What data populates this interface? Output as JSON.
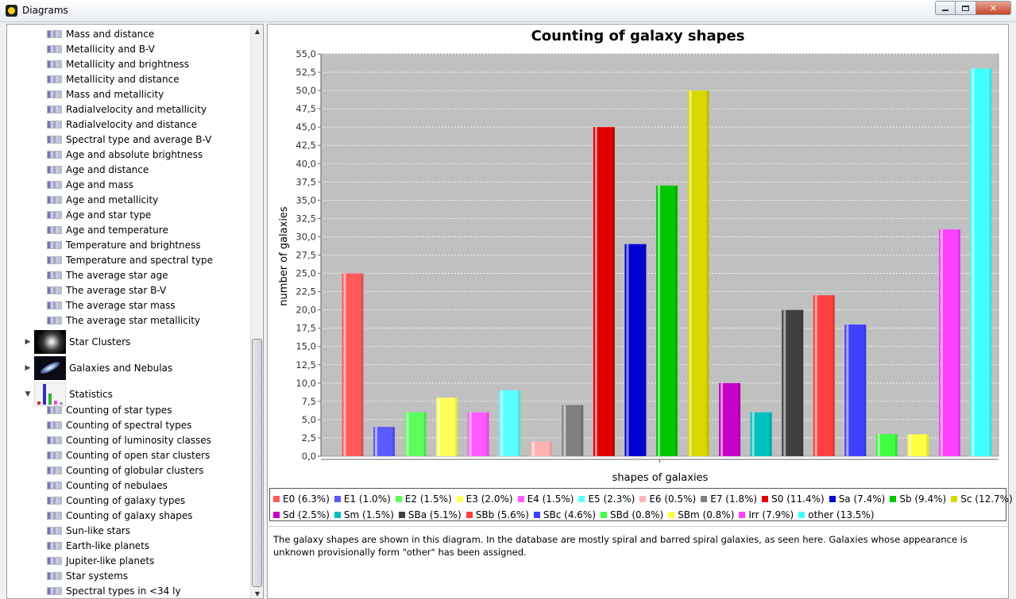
{
  "window": {
    "title": "Diagrams"
  },
  "tree": {
    "leaves_top": [
      "Mass and distance",
      "Metallicity and B-V",
      "Metallicity and brightness",
      "Metallicity and distance",
      "Mass and metallicity",
      "Radialvelocity and metallicity",
      "Radialvelocity and distance",
      "Spectral type and average B-V",
      "Age and absolute brightness",
      "Age and distance",
      "Age and mass",
      "Age and metallicity",
      "Age and star type",
      "Age and temperature",
      "Temperature and brightness",
      "Temperature and spectral type",
      "The average star age",
      "The average star B-V",
      "The average star mass",
      "The average star metallicity"
    ],
    "groups": [
      {
        "label": "Star Clusters",
        "expanded": false,
        "thumb": "star-cluster"
      },
      {
        "label": "Galaxies and Nebulas",
        "expanded": false,
        "thumb": "galaxy"
      },
      {
        "label": "Statistics",
        "expanded": true,
        "thumb": "statistics"
      }
    ],
    "leaves_statistics": [
      "Counting of star types",
      "Counting of spectral types",
      "Counting of luminosity classes",
      "Counting of open star clusters",
      "Counting of globular clusters",
      "Counting of nebulaes",
      "Counting of galaxy types",
      "Counting of galaxy shapes",
      "Sun-like stars",
      "Earth-like planets",
      "Jupiter-like planets",
      "Star systems",
      "Spectral types in <34 ly"
    ]
  },
  "chart_data": {
    "type": "bar",
    "title": "Counting of galaxy shapes",
    "xlabel": "shapes of galaxies",
    "ylabel": "number of galaxies",
    "ylim": [
      0,
      55
    ],
    "ytick_step": 2.5,
    "grid": true,
    "legend": "bottom",
    "series": [
      {
        "name": "E0 (6.3%)",
        "value": 25,
        "color": "#ff5a5a"
      },
      {
        "name": "E1 (1.0%)",
        "value": 4,
        "color": "#5a5aff"
      },
      {
        "name": "E2 (1.5%)",
        "value": 6,
        "color": "#5aff5a"
      },
      {
        "name": "E3 (2.0%)",
        "value": 8,
        "color": "#ffff5a"
      },
      {
        "name": "E4 (1.5%)",
        "value": 6,
        "color": "#ff5aff"
      },
      {
        "name": "E5 (2.3%)",
        "value": 9,
        "color": "#5affff"
      },
      {
        "name": "E6 (0.5%)",
        "value": 2,
        "color": "#ffb3b3"
      },
      {
        "name": "E7 (1.8%)",
        "value": 7,
        "color": "#808080"
      },
      {
        "name": "S0 (11.4%)",
        "value": 45,
        "color": "#e00000"
      },
      {
        "name": "Sa (7.4%)",
        "value": 29,
        "color": "#0000d0"
      },
      {
        "name": "Sb (9.4%)",
        "value": 37,
        "color": "#00c800"
      },
      {
        "name": "Sc (12.7%)",
        "value": 50,
        "color": "#d8d800"
      },
      {
        "name": "Sd (2.5%)",
        "value": 10,
        "color": "#c800c8"
      },
      {
        "name": "Sm (1.5%)",
        "value": 6,
        "color": "#00c0c0"
      },
      {
        "name": "SBa (5.1%)",
        "value": 20,
        "color": "#404040"
      },
      {
        "name": "SBb (5.6%)",
        "value": 22,
        "color": "#ff4040"
      },
      {
        "name": "SBc (4.6%)",
        "value": 18,
        "color": "#4040ff"
      },
      {
        "name": "SBd (0.8%)",
        "value": 3,
        "color": "#40ff40"
      },
      {
        "name": "SBm (0.8%)",
        "value": 3,
        "color": "#ffff40"
      },
      {
        "name": "Irr (7.9%)",
        "value": 31,
        "color": "#ff40ff"
      },
      {
        "name": "other (13.5%)",
        "value": 53,
        "color": "#40ffff"
      }
    ]
  },
  "description": "The galaxy shapes are shown in this diagram. In the database are mostly spiral and barred spiral galaxies, as seen here. Galaxies whose appearance is unknown provisionally form \"other\" has been assigned."
}
